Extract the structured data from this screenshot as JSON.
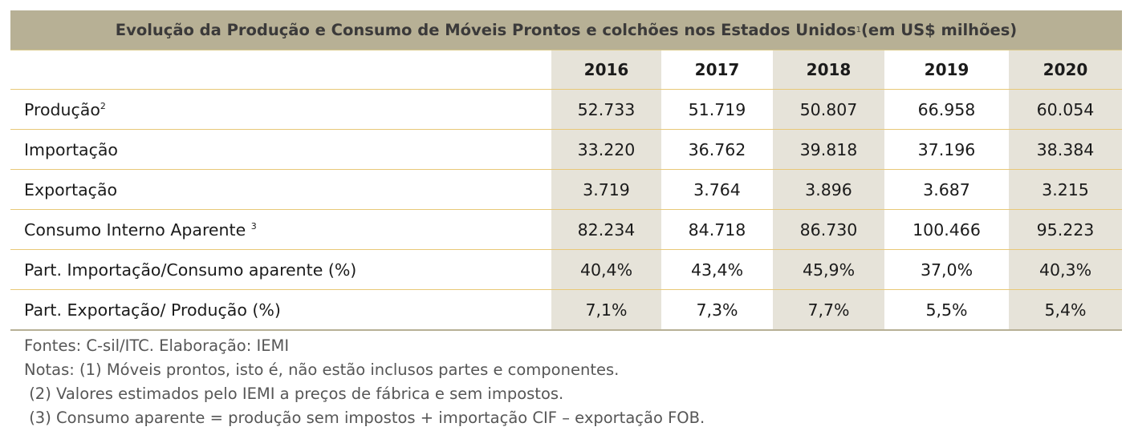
{
  "table": {
    "title": "Evolução da Produção e Consumo de Móveis Prontos e colchões nos Estados Unidos",
    "title_sup": "1",
    "title_suffix": "(em US$ milhões)",
    "years": [
      "2016",
      "2017",
      "2018",
      "2019",
      "2020"
    ],
    "rows": [
      {
        "label": "Produção",
        "sup": "2",
        "values": [
          "52.733",
          "51.719",
          "50.807",
          "66.958",
          "60.054"
        ]
      },
      {
        "label": "Importação",
        "sup": "",
        "values": [
          "33.220",
          "36.762",
          "39.818",
          "37.196",
          "38.384"
        ]
      },
      {
        "label": "Exportação",
        "sup": "",
        "values": [
          "3.719",
          "3.764",
          "3.896",
          "3.687",
          "3.215"
        ]
      },
      {
        "label": "Consumo Interno Aparente ",
        "sup": "3",
        "values": [
          "82.234",
          "84.718",
          "86.730",
          "100.466",
          "95.223"
        ]
      },
      {
        "label": "Part. Importação/Consumo aparente (%)",
        "sup": "",
        "values": [
          "40,4%",
          "43,4%",
          "45,9%",
          "37,0%",
          "40,3%"
        ]
      },
      {
        "label": "Part. Exportação/ Produção (%)",
        "sup": "",
        "values": [
          "7,1%",
          "7,3%",
          "7,7%",
          "5,5%",
          "5,4%"
        ]
      }
    ]
  },
  "notes": {
    "source": "Fontes: C-sil/ITC. Elaboração: IEMI",
    "note1": "Notas: (1) Móveis prontos, isto é, não estão inclusos partes e componentes.",
    "note2": " (2) Valores estimados pelo IEMI a preços de fábrica e sem impostos.",
    "note3": " (3) Consumo aparente = produção sem impostos + importação CIF – exportação FOB."
  }
}
